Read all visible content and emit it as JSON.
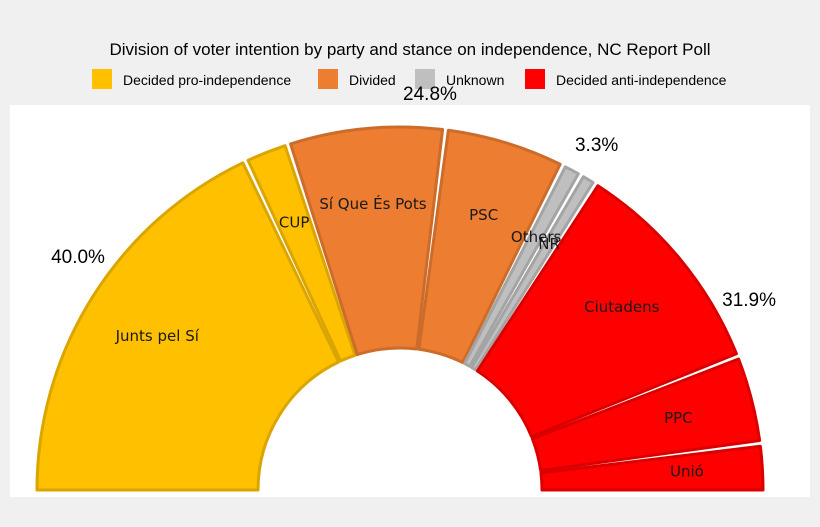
{
  "chart_data": {
    "type": "pie",
    "subtype": "half-donut",
    "title": "Division of voter intention by party and stance on independence, NC Report Poll",
    "legend": [
      {
        "name": "Decided pro-independence",
        "color": "#FFC000"
      },
      {
        "name": "Divided",
        "color": "#ED7D31"
      },
      {
        "name": "Unknown",
        "color": "#BFBFBF"
      },
      {
        "name": "Decided anti-independence",
        "color": "#FF0000"
      }
    ],
    "segments": [
      {
        "label": "Junts pel Sí",
        "value": 36.0,
        "group": 0
      },
      {
        "label": "CUP",
        "value": 4.0,
        "group": 0
      },
      {
        "label": "Sí Que És Pots",
        "value": 14.0,
        "group": 1
      },
      {
        "label": "PSC",
        "value": 10.8,
        "group": 1
      },
      {
        "label": "Others",
        "value": 1.8,
        "group": 2
      },
      {
        "label": "NR",
        "value": 1.5,
        "group": 2
      },
      {
        "label": "Ciutadens",
        "value": 19.9,
        "group": 3
      },
      {
        "label": "PPC",
        "value": 7.9,
        "group": 3
      },
      {
        "label": "Unió",
        "value": 4.1,
        "group": 3
      }
    ],
    "group_totals": [
      {
        "group": 0,
        "label": "40.0%"
      },
      {
        "group": 1,
        "label": "24.8%"
      },
      {
        "group": 2,
        "label": "3.3%"
      },
      {
        "group": 3,
        "label": "31.9%"
      }
    ]
  }
}
